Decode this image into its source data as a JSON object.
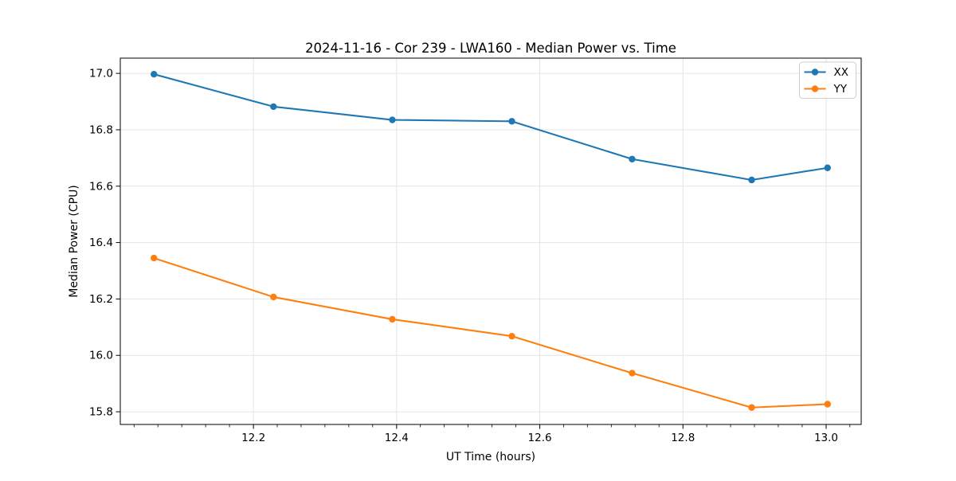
{
  "figure": {
    "title": "2024-11-16 - Cor 239 - LWA160 - Median Power vs. Time"
  },
  "chart_data": {
    "type": "line",
    "title": "2024-11-16 - Cor 239 - LWA160 - Median Power vs. Time",
    "xlabel": "UT Time (hours)",
    "ylabel": "Median Power (CPU)",
    "x": [
      12.061,
      12.228,
      12.394,
      12.561,
      12.729,
      12.896,
      13.002
    ],
    "series": [
      {
        "name": "XX",
        "color": "#1f77b4",
        "values": [
          16.997,
          16.882,
          16.835,
          16.83,
          16.696,
          16.622,
          16.665
        ]
      },
      {
        "name": "YY",
        "color": "#ff7f0e",
        "values": [
          16.345,
          16.207,
          16.128,
          16.068,
          15.937,
          15.815,
          15.827
        ]
      }
    ],
    "xlim": [
      12.014,
      13.049
    ],
    "ylim": [
      15.755,
      17.054
    ],
    "x_ticks": [
      12.2,
      12.4,
      12.6,
      12.8,
      13.0
    ],
    "x_tick_labels": [
      "12.2",
      "12.4",
      "12.6",
      "12.8",
      "13.0"
    ],
    "x_minor_step": 0.033333,
    "y_ticks": [
      15.8,
      16.0,
      16.2,
      16.4,
      16.6,
      16.8,
      17.0
    ],
    "y_tick_labels": [
      "15.8",
      "16.0",
      "16.2",
      "16.4",
      "16.6",
      "16.8",
      "17.0"
    ],
    "grid": true,
    "grid_color": "#e4e4e4",
    "spine_color": "#000000",
    "marker": "circle",
    "marker_radius": 4.2,
    "line_width": 2.1,
    "legend": {
      "position": "upper right",
      "entries": [
        "XX",
        "YY"
      ]
    }
  }
}
